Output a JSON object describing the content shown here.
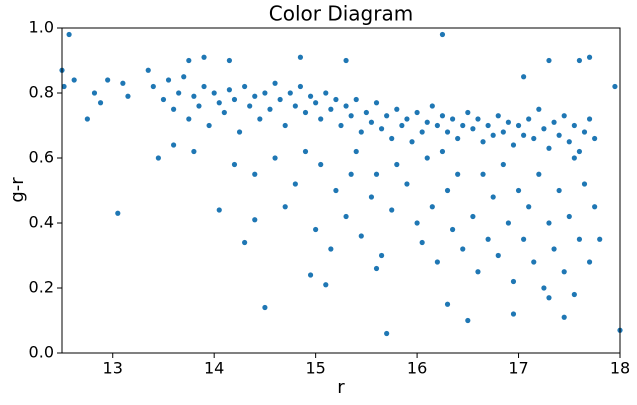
{
  "chart_data": {
    "type": "scatter",
    "title": "Color Diagram",
    "x_label": "r",
    "y_label": "g-r",
    "color": "#1f77b4",
    "x": [
      12.5,
      12.52,
      12.57,
      12.62,
      12.75,
      12.82,
      12.88,
      12.95,
      13.05,
      13.1,
      13.15,
      13.35,
      13.45,
      13.6,
      13.75,
      13.8,
      13.9,
      14.05,
      14.15,
      14.3,
      14.5,
      14.4,
      14.85,
      14.95,
      15.1,
      15.3,
      15.6,
      15.7,
      16.25,
      16.3,
      16.5,
      16.95,
      17.05,
      17.3,
      17.45,
      17.6,
      17.7,
      17.95,
      18.0,
      13.4,
      13.5,
      13.55,
      13.6,
      13.65,
      13.7,
      13.75,
      13.8,
      13.85,
      13.9,
      13.95,
      14.0,
      14.05,
      14.1,
      14.15,
      14.2,
      14.25,
      14.3,
      14.35,
      14.4,
      14.45,
      14.5,
      14.55,
      14.6,
      14.65,
      14.7,
      14.75,
      14.8,
      14.85,
      14.9,
      14.95,
      15.0,
      15.05,
      15.1,
      15.15,
      15.2,
      15.25,
      15.3,
      15.35,
      15.4,
      15.45,
      15.5,
      15.55,
      15.6,
      15.65,
      15.7,
      15.75,
      15.8,
      15.85,
      15.9,
      15.95,
      16.0,
      16.05,
      16.1,
      16.15,
      16.2,
      16.25,
      16.3,
      16.35,
      16.4,
      16.45,
      16.5,
      16.55,
      16.6,
      16.65,
      16.7,
      16.75,
      16.8,
      16.85,
      16.9,
      16.95,
      17.0,
      17.05,
      17.1,
      17.15,
      17.2,
      17.25,
      17.3,
      17.35,
      17.4,
      17.45,
      17.5,
      17.55,
      17.6,
      17.65,
      17.7,
      17.75,
      14.2,
      14.4,
      14.6,
      14.7,
      14.8,
      14.9,
      15.0,
      15.05,
      15.15,
      15.2,
      15.3,
      15.4,
      15.45,
      15.55,
      15.6,
      15.65,
      15.75,
      15.8,
      15.9,
      16.0,
      16.05,
      16.1,
      16.15,
      16.2,
      16.3,
      16.35,
      16.4,
      16.45,
      16.55,
      16.6,
      16.65,
      16.7,
      16.75,
      16.8,
      16.85,
      16.9,
      16.95,
      17.0,
      17.05,
      17.1,
      17.15,
      17.2,
      17.25,
      17.3,
      17.35,
      17.4,
      17.45,
      17.5,
      17.55,
      17.6,
      17.65,
      17.7,
      17.75,
      17.8,
      17.3,
      17.55,
      16.25,
      15.35
    ],
    "values": [
      0.87,
      0.82,
      0.98,
      0.84,
      0.72,
      0.8,
      0.77,
      0.84,
      0.43,
      0.83,
      0.79,
      0.87,
      0.6,
      0.64,
      0.9,
      0.62,
      0.91,
      0.44,
      0.9,
      0.34,
      0.14,
      0.41,
      0.91,
      0.24,
      0.21,
      0.9,
      0.26,
      0.06,
      0.98,
      0.15,
      0.1,
      0.12,
      0.85,
      0.9,
      0.11,
      0.9,
      0.91,
      0.82,
      0.07,
      0.82,
      0.78,
      0.84,
      0.75,
      0.8,
      0.85,
      0.72,
      0.79,
      0.76,
      0.82,
      0.7,
      0.8,
      0.77,
      0.74,
      0.81,
      0.78,
      0.68,
      0.82,
      0.76,
      0.79,
      0.72,
      0.8,
      0.75,
      0.83,
      0.78,
      0.7,
      0.8,
      0.76,
      0.82,
      0.74,
      0.79,
      0.77,
      0.72,
      0.8,
      0.75,
      0.78,
      0.7,
      0.76,
      0.73,
      0.78,
      0.68,
      0.74,
      0.71,
      0.77,
      0.69,
      0.73,
      0.66,
      0.75,
      0.7,
      0.72,
      0.65,
      0.74,
      0.68,
      0.71,
      0.76,
      0.7,
      0.73,
      0.68,
      0.72,
      0.66,
      0.7,
      0.74,
      0.69,
      0.72,
      0.65,
      0.7,
      0.67,
      0.73,
      0.68,
      0.71,
      0.64,
      0.7,
      0.67,
      0.72,
      0.66,
      0.75,
      0.69,
      0.63,
      0.71,
      0.67,
      0.73,
      0.65,
      0.7,
      0.62,
      0.68,
      0.72,
      0.66,
      0.58,
      0.55,
      0.6,
      0.45,
      0.52,
      0.62,
      0.38,
      0.58,
      0.32,
      0.5,
      0.42,
      0.62,
      0.36,
      0.48,
      0.55,
      0.3,
      0.44,
      0.58,
      0.52,
      0.4,
      0.34,
      0.6,
      0.45,
      0.28,
      0.5,
      0.38,
      0.55,
      0.32,
      0.42,
      0.25,
      0.55,
      0.35,
      0.48,
      0.3,
      0.58,
      0.4,
      0.22,
      0.5,
      0.35,
      0.45,
      0.28,
      0.55,
      0.2,
      0.4,
      0.32,
      0.5,
      0.25,
      0.42,
      0.18,
      0.35,
      0.52,
      0.28,
      0.45,
      0.35,
      0.17,
      0.6,
      0.62,
      0.55
    ],
    "xlim": [
      12.5,
      18
    ],
    "ylim": [
      0,
      1
    ],
    "xticks": [
      13,
      14,
      15,
      16,
      17,
      18
    ],
    "yticks": [
      {
        "value": 0,
        "label": "0.0"
      },
      0.2,
      0.4,
      0.6,
      0.8,
      {
        "value": 1,
        "label": "1.0"
      }
    ]
  }
}
